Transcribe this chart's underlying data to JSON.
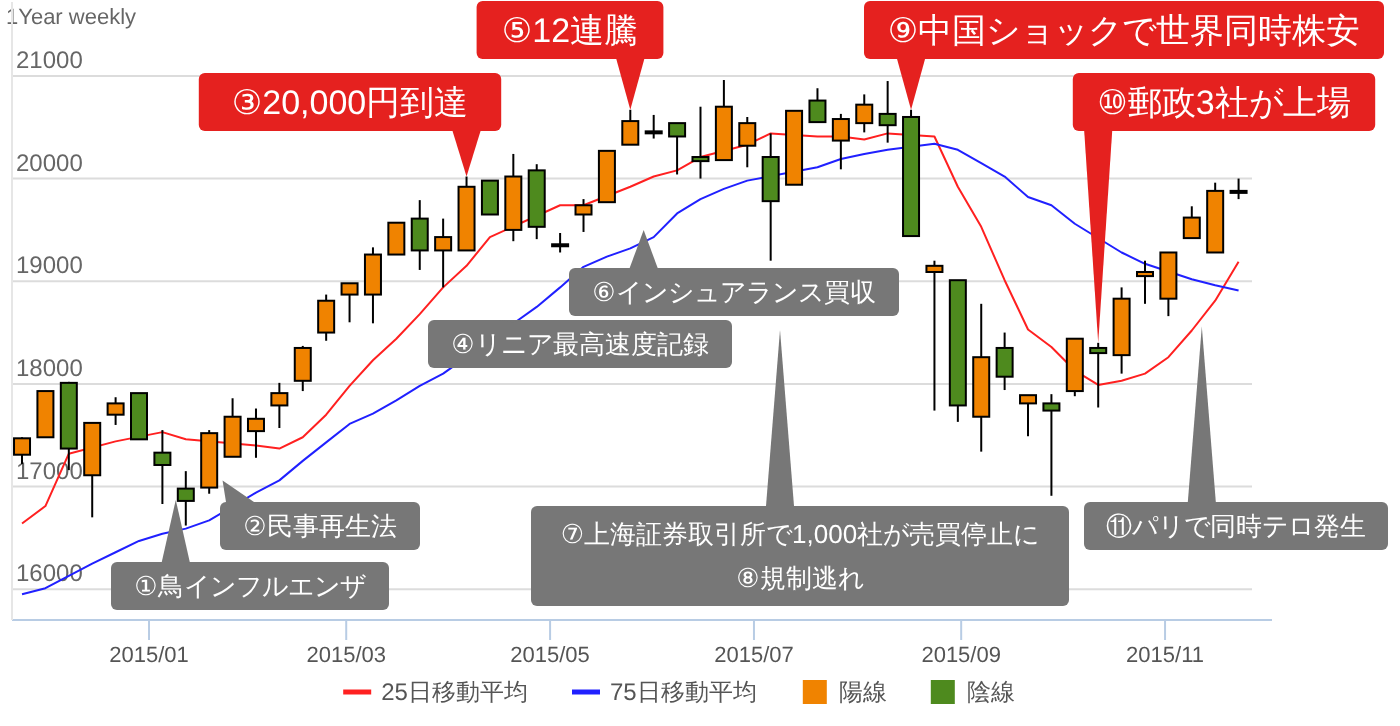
{
  "chart_data": {
    "type": "candlestick",
    "title": "1Year weekly",
    "x": [
      "2014-11-24",
      "2014-12-01",
      "2014-12-08",
      "2014-12-15",
      "2014-12-22",
      "2014-12-29",
      "2015-01-05",
      "2015-01-12",
      "2015-01-19",
      "2015-01-26",
      "2015-02-02",
      "2015-02-09",
      "2015-02-16",
      "2015-02-23",
      "2015-03-02",
      "2015-03-09",
      "2015-03-16",
      "2015-03-23",
      "2015-03-30",
      "2015-04-06",
      "2015-04-13",
      "2015-04-20",
      "2015-04-27",
      "2015-05-04",
      "2015-05-11",
      "2015-05-18",
      "2015-05-25",
      "2015-06-01",
      "2015-06-08",
      "2015-06-15",
      "2015-06-22",
      "2015-06-29",
      "2015-07-06",
      "2015-07-13",
      "2015-07-20",
      "2015-07-27",
      "2015-08-03",
      "2015-08-10",
      "2015-08-17",
      "2015-08-24",
      "2015-08-31",
      "2015-09-07",
      "2015-09-14",
      "2015-09-21",
      "2015-09-28",
      "2015-10-05",
      "2015-10-12",
      "2015-10-19",
      "2015-10-26",
      "2015-11-02",
      "2015-11-09",
      "2015-11-16",
      "2015-11-23"
    ],
    "series": [
      {
        "type": "line",
        "name": "25日移動平均",
        "color": "#ff2020",
        "values": [
          16640,
          16810,
          17320,
          null,
          17440,
          null,
          17530,
          17460,
          null,
          null,
          17400,
          17370,
          17480,
          17700,
          17980,
          18230,
          18440,
          18680,
          18940,
          19150,
          19430,
          null,
          null,
          19740,
          19740,
          null,
          19920,
          20020,
          20080,
          20210,
          null,
          20330,
          20440,
          null,
          20410,
          20410,
          20380,
          20440,
          null,
          20410,
          19920,
          19530,
          19010,
          18530,
          18360,
          18130,
          17990,
          18030,
          18100,
          18260,
          18520,
          18810,
          19190
        ]
      },
      {
        "type": "line",
        "name": "75日移動平均",
        "color": "#2020ff",
        "values": [
          15950,
          16010,
          16130,
          16250,
          16360,
          16470,
          16540,
          16590,
          16670,
          null,
          16940,
          17060,
          17250,
          17430,
          17610,
          17710,
          17840,
          17980,
          18100,
          null,
          null,
          null,
          18750,
          18940,
          19140,
          19240,
          19320,
          19430,
          19660,
          19800,
          19900,
          19980,
          null,
          null,
          20110,
          20190,
          20240,
          20280,
          null,
          20340,
          20280,
          20150,
          20020,
          19820,
          19740,
          19560,
          null,
          19280,
          19170,
          null,
          19020,
          18960,
          18910
        ]
      },
      {
        "name": "陽線",
        "color": "#f08300",
        "ohlc": [
          [
            17310,
            17480,
            17220,
            17470
          ],
          [
            17480,
            17930,
            17480,
            17930
          ],
          null,
          [
            17110,
            17620,
            16700,
            17620
          ],
          [
            17700,
            17870,
            17600,
            17810
          ],
          null,
          null,
          null,
          [
            16990,
            17550,
            16930,
            17520
          ],
          [
            17290,
            17860,
            17290,
            17680
          ],
          [
            17540,
            17760,
            17280,
            17660
          ],
          [
            17790,
            18010,
            17570,
            17910
          ],
          [
            18030,
            18370,
            17930,
            18350
          ],
          [
            18500,
            18870,
            18420,
            18810
          ],
          [
            18870,
            18980,
            18600,
            18980
          ],
          [
            18870,
            19330,
            18590,
            19260
          ],
          [
            19260,
            19570,
            19260,
            19570
          ],
          null,
          [
            19300,
            19610,
            18940,
            19430
          ],
          [
            19300,
            20020,
            19300,
            19920
          ],
          null,
          [
            19500,
            20240,
            19390,
            20020
          ],
          null,
          [
            19360,
            19470,
            19280,
            19360
          ],
          [
            19650,
            19800,
            19480,
            19740
          ],
          [
            19770,
            20270,
            19770,
            20270
          ],
          [
            20330,
            20670,
            20330,
            20560
          ],
          [
            20460,
            20620,
            20390,
            20460
          ],
          null,
          null,
          [
            20180,
            20960,
            20180,
            20700
          ],
          [
            20320,
            20600,
            20110,
            20540
          ],
          null,
          [
            19940,
            20660,
            19940,
            20660
          ],
          null,
          [
            20370,
            20630,
            20090,
            20580
          ],
          [
            20540,
            20820,
            20450,
            20720
          ],
          null,
          null,
          [
            19090,
            19200,
            17740,
            19150
          ],
          null,
          [
            17680,
            18780,
            17340,
            18260
          ],
          null,
          [
            17810,
            17890,
            17490,
            17890
          ],
          null,
          [
            17930,
            18440,
            17880,
            18440
          ],
          null,
          [
            18280,
            18940,
            18100,
            18830
          ],
          [
            19050,
            19200,
            18780,
            19090
          ],
          [
            18830,
            19280,
            18660,
            19280
          ],
          [
            19420,
            19730,
            19420,
            19620
          ],
          [
            19280,
            19960,
            19280,
            19880
          ],
          [
            19880,
            20000,
            19800,
            19880
          ]
        ]
      },
      {
        "name": "陰線",
        "color": "#4e8a1e",
        "ohlc": [
          null,
          null,
          [
            18010,
            18020,
            17160,
            17370
          ],
          null,
          null,
          [
            17910,
            17910,
            17460,
            17460
          ],
          [
            17330,
            17550,
            16830,
            17210
          ],
          [
            16980,
            17150,
            16620,
            16860
          ],
          null,
          null,
          null,
          null,
          null,
          null,
          null,
          null,
          null,
          [
            19610,
            19790,
            19110,
            19300
          ],
          null,
          null,
          [
            19980,
            19980,
            19650,
            19650
          ],
          null,
          [
            20080,
            20140,
            19410,
            19530
          ],
          null,
          null,
          null,
          null,
          null,
          [
            20540,
            20540,
            20040,
            20410
          ],
          [
            20210,
            20700,
            20000,
            20170
          ],
          null,
          null,
          [
            20210,
            20440,
            19200,
            19780
          ],
          null,
          [
            20760,
            20880,
            20550,
            20550
          ],
          null,
          null,
          [
            20630,
            20950,
            20350,
            20520
          ],
          [
            20600,
            20670,
            19440,
            19440
          ],
          null,
          [
            19010,
            19010,
            17630,
            17790
          ],
          null,
          [
            18350,
            18500,
            17940,
            18070
          ],
          null,
          [
            17810,
            17900,
            16910,
            17740
          ],
          null,
          [
            18350,
            18400,
            17770,
            18300
          ],
          null,
          null,
          null,
          null,
          null,
          null
        ]
      }
    ],
    "xlim": [
      "2014-11-21",
      "2015-12-03"
    ],
    "xticks": [
      {
        "value": "2015-01-01",
        "label": "2015/01"
      },
      {
        "value": "2015-03-01",
        "label": "2015/03"
      },
      {
        "value": "2015-05-01",
        "label": "2015/05"
      },
      {
        "value": "2015-07-01",
        "label": "2015/07"
      },
      {
        "value": "2015-09-01",
        "label": "2015/09"
      },
      {
        "value": "2015-11-01",
        "label": "2015/11"
      }
    ],
    "ylim": [
      15700,
      21720
    ],
    "yticks": [
      16000,
      17000,
      18000,
      19000,
      20000,
      21000
    ],
    "grid": "y",
    "legend": "bottom",
    "annotations": [
      {
        "text": "①鳥インフルエンザ",
        "x": "2015-01-09",
        "y": 16870
      },
      {
        "text": "②民事再生法",
        "x": "2015-01-23",
        "y": 17060
      },
      {
        "text": "③20,000円到達",
        "x": "2015-04-06",
        "y": 20020
      },
      {
        "text": "④リニア最高速度記録",
        "x": "2015-04-20",
        "y": 18600
      },
      {
        "text": "⑤12連騰",
        "x": "2015-05-25",
        "y": 20670
      },
      {
        "text": "⑥インシュアランス買収",
        "x": "2015-05-29",
        "y": 19500
      },
      "⑦上海証券取引所で1,000社が売買停止に",
      "⑧規制逃れ",
      {
        "text": "⑨中国ショックで世界同時株安",
        "x": "2015-08-17",
        "y": 20670
      },
      {
        "text": "⑩郵政3社が上場",
        "x": "2015-10-12",
        "y": 18400
      },
      {
        "text": "⑪パリで同時テロ発生",
        "x": "2015-11-12",
        "y": 18560
      }
    ]
  }
}
